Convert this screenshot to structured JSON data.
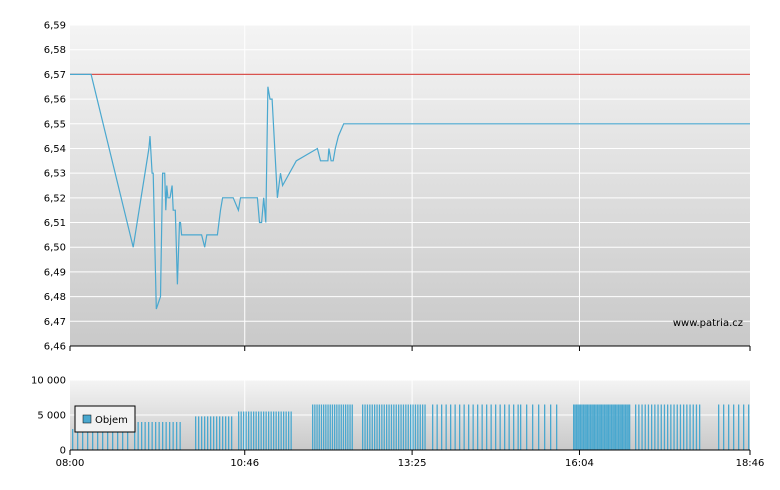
{
  "watermark": "www.patria.cz",
  "colors": {
    "price_line": "#4aa8cf",
    "reference_line": "#d9534f",
    "volume_bar": "#4aa8cf",
    "grid": "#ffffff",
    "axis": "#000000"
  },
  "chart_data": [
    {
      "type": "line",
      "title": "",
      "xlabel": "",
      "ylabel": "",
      "x_range": [
        "08:00",
        "18:46"
      ],
      "ylim": [
        6.46,
        6.59
      ],
      "grid": true,
      "ytick_labels": [
        "6,59",
        "6,58",
        "6,57",
        "6,56",
        "6,55",
        "6,54",
        "6,53",
        "6,52",
        "6,51",
        "6,50",
        "6,49",
        "6,48",
        "6,47",
        "6,46"
      ],
      "ytick_values": [
        6.59,
        6.58,
        6.57,
        6.56,
        6.55,
        6.54,
        6.53,
        6.52,
        6.51,
        6.5,
        6.49,
        6.48,
        6.47,
        6.46
      ],
      "reference_line": {
        "value": 6.57
      },
      "series": [
        {
          "x": [
            "08:00",
            "08:20",
            "09:00",
            "09:15",
            "09:16",
            "09:18",
            "09:19",
            "09:22",
            "09:26",
            "09:28",
            "09:30",
            "09:31",
            "09:32",
            "09:33",
            "09:35",
            "09:37",
            "09:38",
            "09:40",
            "09:42",
            "09:44",
            "09:45",
            "09:46",
            "09:48",
            "09:55",
            "10:05",
            "10:08",
            "10:10",
            "10:12",
            "10:20",
            "10:23",
            "10:25",
            "10:35",
            "10:40",
            "10:42",
            "10:58",
            "11:00",
            "11:02",
            "11:04",
            "11:06",
            "11:08",
            "11:10",
            "11:12",
            "11:17",
            "11:20",
            "11:22",
            "11:35",
            "11:55",
            "11:58",
            "12:05",
            "12:06",
            "12:08",
            "12:10",
            "12:12",
            "12:15",
            "12:20",
            "18:46"
          ],
          "y": [
            6.57,
            6.57,
            6.5,
            6.54,
            6.545,
            6.53,
            6.53,
            6.475,
            6.48,
            6.53,
            6.53,
            6.515,
            6.525,
            6.52,
            6.52,
            6.525,
            6.515,
            6.515,
            6.485,
            6.51,
            6.51,
            6.505,
            6.505,
            6.505,
            6.505,
            6.5,
            6.505,
            6.505,
            6.505,
            6.515,
            6.52,
            6.52,
            6.515,
            6.52,
            6.52,
            6.51,
            6.51,
            6.52,
            6.51,
            6.565,
            6.56,
            6.56,
            6.52,
            6.53,
            6.525,
            6.535,
            6.54,
            6.535,
            6.535,
            6.54,
            6.535,
            6.535,
            6.54,
            6.545,
            6.55,
            6.55
          ]
        }
      ]
    },
    {
      "type": "bar",
      "title": "",
      "xlabel": "",
      "ylabel": "",
      "ylim": [
        0,
        10000
      ],
      "ytick_labels": [
        "10 000",
        "5 000",
        "0"
      ],
      "ytick_values": [
        10000,
        5000,
        0
      ],
      "xtick_labels": [
        "08:00",
        "10:46",
        "13:25",
        "16:04",
        "18:46"
      ],
      "legend": {
        "placement": "left",
        "entries": [
          "Objem"
        ]
      },
      "grid": true
    }
  ]
}
